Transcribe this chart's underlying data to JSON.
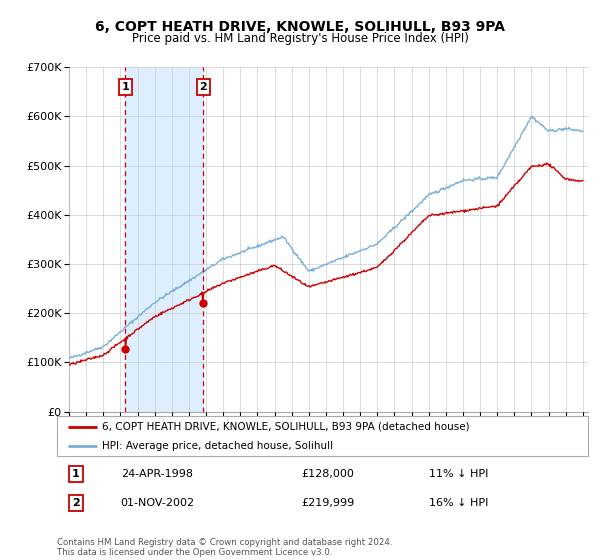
{
  "title": "6, COPT HEATH DRIVE, KNOWLE, SOLIHULL, B93 9PA",
  "subtitle": "Price paid vs. HM Land Registry's House Price Index (HPI)",
  "legend_line1": "6, COPT HEATH DRIVE, KNOWLE, SOLIHULL, B93 9PA (detached house)",
  "legend_line2": "HPI: Average price, detached house, Solihull",
  "sale1_date": "24-APR-1998",
  "sale1_price": 128000,
  "sale1_label": "£128,000",
  "sale1_pct": "11% ↓ HPI",
  "sale2_date": "01-NOV-2002",
  "sale2_price": 219999,
  "sale2_label": "£219,999",
  "sale2_pct": "16% ↓ HPI",
  "footer": "Contains HM Land Registry data © Crown copyright and database right 2024.\nThis data is licensed under the Open Government Licence v3.0.",
  "red_color": "#cc0000",
  "blue_color": "#7ab0d4",
  "shade_color": "#ddeeff",
  "dashed_color": "#cc0000",
  "background_color": "#ffffff",
  "grid_color": "#cccccc",
  "ylim": [
    0,
    700000
  ],
  "yticks": [
    0,
    100000,
    200000,
    300000,
    400000,
    500000,
    600000,
    700000
  ],
  "ytick_labels": [
    "£0",
    "£100K",
    "£200K",
    "£300K",
    "£400K",
    "£500K",
    "£600K",
    "£700K"
  ],
  "sale1_x": 1998.292,
  "sale2_x": 2002.833
}
